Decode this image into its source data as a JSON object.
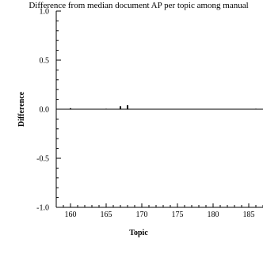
{
  "chart_data": {
    "type": "bar",
    "title": "Difference from median document AP per topic among manual",
    "xlabel": "Topic",
    "ylabel": "Difference",
    "xlim": [
      158,
      187
    ],
    "ylim": [
      -1.0,
      1.0
    ],
    "x_ticks": [
      "160",
      "165",
      "170",
      "175",
      "180",
      "185"
    ],
    "y_ticks": [
      "1.0",
      "0.5",
      "0.0",
      "-0.5",
      "-1.0"
    ],
    "x": [
      160,
      161,
      162,
      163,
      164,
      165,
      166,
      167,
      168,
      169,
      170,
      171,
      172,
      173,
      174,
      175,
      176,
      177,
      178,
      179,
      180,
      181,
      182,
      183,
      184,
      185,
      186
    ],
    "values": [
      0.01,
      0.0,
      0.0,
      0.0,
      0.0,
      0.005,
      0.0,
      0.03,
      0.04,
      0.0,
      0.0,
      0.0,
      0.0,
      0.0,
      0.0,
      0.0,
      0.0,
      0.0,
      0.0,
      0.0,
      0.0,
      0.0,
      0.0,
      0.0,
      0.0,
      0.0,
      0.005
    ],
    "grid": false,
    "colors": {
      "bar": "#000000",
      "axis": "#000000",
      "background": "#ffffff"
    }
  }
}
